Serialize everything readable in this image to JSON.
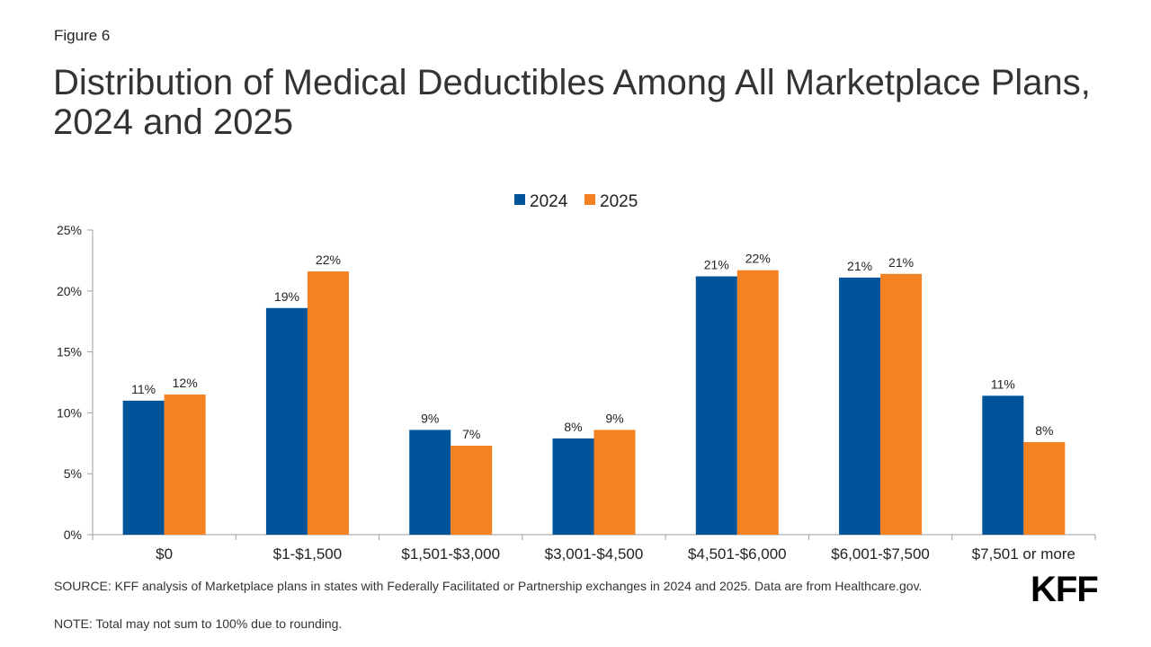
{
  "figure_label": "Figure 6",
  "title": "Distribution of Medical Deductibles Among All Marketplace Plans, 2024 and 2025",
  "source": "SOURCE: KFF analysis of Marketplace plans in states with Federally Facilitated or Partnership exchanges in 2024 and 2025. Data are from Healthcare.gov.",
  "note": "NOTE: Total may not sum to 100% due to rounding.",
  "logo": "KFF",
  "colors": {
    "series_2024": "#00549a",
    "series_2025": "#f58220",
    "axis": "#9e9e9e"
  },
  "chart_data": {
    "type": "bar",
    "categories": [
      "$0",
      "$1-$1,500",
      "$1,501-$3,000",
      "$3,001-$4,500",
      "$4,501-$6,000",
      "$6,001-$7,500",
      "$7,501 or more"
    ],
    "series": [
      {
        "name": "2024",
        "values": [
          11.0,
          18.6,
          8.6,
          7.9,
          21.2,
          21.1,
          11.4
        ],
        "labels": [
          "11%",
          "19%",
          "9%",
          "8%",
          "21%",
          "21%",
          "11%"
        ]
      },
      {
        "name": "2025",
        "values": [
          11.5,
          21.6,
          7.3,
          8.6,
          21.7,
          21.4,
          7.6
        ],
        "labels": [
          "12%",
          "22%",
          "7%",
          "9%",
          "22%",
          "21%",
          "8%"
        ]
      }
    ],
    "ylim": [
      0,
      25
    ],
    "yticks": [
      0,
      5,
      10,
      15,
      20,
      25
    ],
    "ytick_labels": [
      "0%",
      "5%",
      "10%",
      "15%",
      "20%",
      "25%"
    ],
    "legend_position": "top-center",
    "grid": false
  }
}
